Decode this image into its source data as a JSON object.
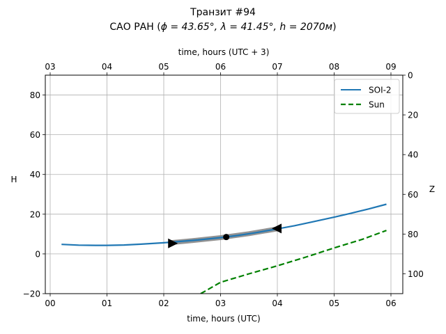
{
  "chart_data": {
    "type": "line",
    "title": "Транзит #94",
    "subtitle_prefix": "САО РАН (",
    "subtitle_math": "ϕ = 43.65°, λ = 41.45°, h = 2070м",
    "subtitle_suffix": ")",
    "xlabel": "time, hours (UTC)",
    "xlabel_top": "time, hours (UTC + 3)",
    "ylabel": "H",
    "ylabel_right": "Z",
    "xlim": [
      -0.1,
      6.2
    ],
    "ylim": [
      -20,
      90
    ],
    "grid": true,
    "legend_position": "top-right",
    "x_ticks": [
      {
        "value": 0,
        "label": "00"
      },
      {
        "value": 1,
        "label": "01"
      },
      {
        "value": 2,
        "label": "02"
      },
      {
        "value": 3,
        "label": "03"
      },
      {
        "value": 4,
        "label": "04"
      },
      {
        "value": 5,
        "label": "05"
      },
      {
        "value": 6,
        "label": "06"
      }
    ],
    "x_ticks_top": [
      {
        "value": 0,
        "label": "03"
      },
      {
        "value": 1,
        "label": "04"
      },
      {
        "value": 2,
        "label": "05"
      },
      {
        "value": 3,
        "label": "06"
      },
      {
        "value": 4,
        "label": "07"
      },
      {
        "value": 5,
        "label": "08"
      },
      {
        "value": 6,
        "label": "09"
      }
    ],
    "y_ticks": [
      {
        "value": -20,
        "label": "−20"
      },
      {
        "value": 0,
        "label": "0"
      },
      {
        "value": 20,
        "label": "20"
      },
      {
        "value": 40,
        "label": "40"
      },
      {
        "value": 60,
        "label": "60"
      },
      {
        "value": 80,
        "label": "80"
      }
    ],
    "z_ticks": [
      {
        "value": 0,
        "label": "0"
      },
      {
        "value": 20,
        "label": "20"
      },
      {
        "value": 40,
        "label": "40"
      },
      {
        "value": 60,
        "label": "60"
      },
      {
        "value": 80,
        "label": "80"
      },
      {
        "value": 100,
        "label": "100"
      }
    ],
    "series": [
      {
        "name": "SOI-2",
        "color": "#1f77b4",
        "style": "solid",
        "x": [
          0.2,
          0.5,
          0.8,
          1.0,
          1.3,
          1.6,
          2.0,
          2.3,
          2.6,
          3.0,
          3.3,
          3.6,
          4.0,
          4.3,
          4.6,
          5.0,
          5.3,
          5.6,
          5.92
        ],
        "y": [
          4.8,
          4.4,
          4.3,
          4.3,
          4.5,
          4.9,
          5.6,
          6.3,
          7.0,
          8.2,
          9.3,
          10.6,
          12.6,
          14.2,
          16.0,
          18.5,
          20.5,
          22.6,
          25.0
        ]
      },
      {
        "name": "Sun",
        "color": "#008000",
        "style": "dashed",
        "x": [
          2.65,
          3.0,
          3.5,
          4.0,
          4.5,
          5.0,
          5.5,
          5.92
        ],
        "y": [
          -20,
          -14.3,
          -10.0,
          -6.0,
          -1.6,
          3.0,
          7.4,
          11.8
        ]
      }
    ],
    "transit_band": {
      "color": "#808080",
      "x": [
        2.1,
        2.5,
        3.0,
        3.5,
        4.0
      ],
      "y": [
        5.6,
        6.7,
        8.2,
        10.2,
        12.6
      ]
    },
    "markers": [
      {
        "name": "transit-start",
        "shape": "triangle-right",
        "x": 2.15,
        "y": 5.3
      },
      {
        "name": "transit-mid",
        "shape": "circle",
        "x": 3.1,
        "y": 8.5
      },
      {
        "name": "transit-end",
        "shape": "triangle-left",
        "x": 4.0,
        "y": 12.8
      }
    ]
  }
}
